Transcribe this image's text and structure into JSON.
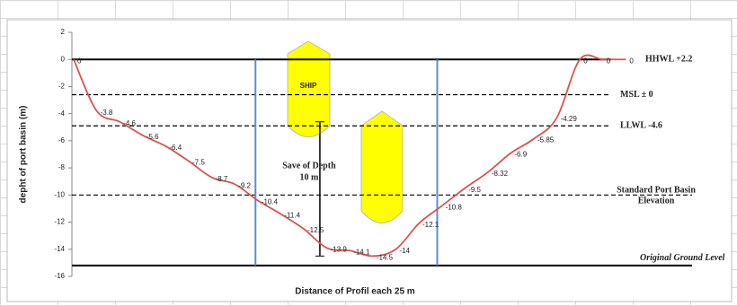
{
  "chart_data": {
    "type": "line",
    "ylabel": "depht of port basin (m)",
    "xlabel": "Distance of Profil each 25 m",
    "series": [
      {
        "name": "profile",
        "color": "#d9534f",
        "values": [
          0,
          -3.8,
          -4.6,
          -5.6,
          -6.4,
          -7.5,
          -8.7,
          -9.2,
          -10.4,
          -11.4,
          -12.5,
          -13.9,
          -14.1,
          -14.5,
          -14,
          -12.1,
          -10.8,
          -9.5,
          -8.32,
          -6.9,
          -5.85,
          -4.29,
          0,
          0,
          0
        ]
      }
    ],
    "ylim": [
      -16,
      2
    ],
    "yticks": [
      2,
      0,
      -2,
      -4,
      -6,
      -8,
      -10,
      -12,
      -14,
      -16
    ],
    "reference_lines": [
      {
        "label": [
          "HHWL +2.2"
        ],
        "value": 0,
        "dashed": false
      },
      {
        "label": [
          "MSL ± 0"
        ],
        "value": -2.6,
        "dashed": true
      },
      {
        "label": [
          "LLWL -4.6"
        ],
        "value": -4.9,
        "dashed": true
      },
      {
        "label": [
          "Standard Port Basin",
          "Elevation"
        ],
        "value": -10,
        "dashed": true
      },
      {
        "label": [
          "Original Ground Level"
        ],
        "value": -15.2,
        "dashed": false
      }
    ],
    "vertical_lines": [
      7.9,
      15.8
    ],
    "vertical_color": "#5b8fc9",
    "depth_arrow": {
      "from": -4.6,
      "to": -14.5,
      "x": 10.7
    },
    "annotations": {
      "ship": "SHIP",
      "depth": [
        "Save of Depth",
        "10 m"
      ]
    }
  }
}
